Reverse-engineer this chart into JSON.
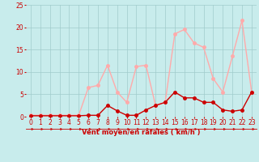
{
  "x": [
    0,
    1,
    2,
    3,
    4,
    5,
    6,
    7,
    8,
    9,
    10,
    11,
    12,
    13,
    14,
    15,
    16,
    17,
    18,
    19,
    20,
    21,
    22,
    23
  ],
  "y_rafales": [
    0.3,
    0.3,
    0.3,
    0.3,
    0.3,
    0.3,
    6.5,
    7.0,
    11.5,
    5.5,
    3.2,
    11.2,
    11.5,
    2.5,
    3.2,
    18.5,
    19.5,
    16.5,
    15.5,
    8.5,
    5.5,
    13.5,
    21.5,
    5.5
  ],
  "y_moyen": [
    0.2,
    0.2,
    0.2,
    0.2,
    0.2,
    0.2,
    0.3,
    0.3,
    2.5,
    1.3,
    0.3,
    0.3,
    1.5,
    2.5,
    3.2,
    5.5,
    4.2,
    4.2,
    3.2,
    3.2,
    1.5,
    1.2,
    1.5,
    5.5
  ],
  "color_rafales": "#ffaaaa",
  "color_moyen": "#cc0000",
  "xlabel": "Vent moyen/en rafales ( km/h )",
  "ylim": [
    0,
    25
  ],
  "xlim": [
    -0.5,
    23.5
  ],
  "yticks": [
    0,
    5,
    10,
    15,
    20,
    25
  ],
  "xticks": [
    0,
    1,
    2,
    3,
    4,
    5,
    6,
    7,
    8,
    9,
    10,
    11,
    12,
    13,
    14,
    15,
    16,
    17,
    18,
    19,
    20,
    21,
    22,
    23
  ],
  "bg_color": "#c8ecec",
  "grid_color": "#a0cccc",
  "xlabel_color": "#cc0000",
  "tick_color": "#cc0000",
  "tick_fontsize": 5.5,
  "xlabel_fontsize": 6.0,
  "linewidth": 1.0,
  "markersize": 2.5
}
